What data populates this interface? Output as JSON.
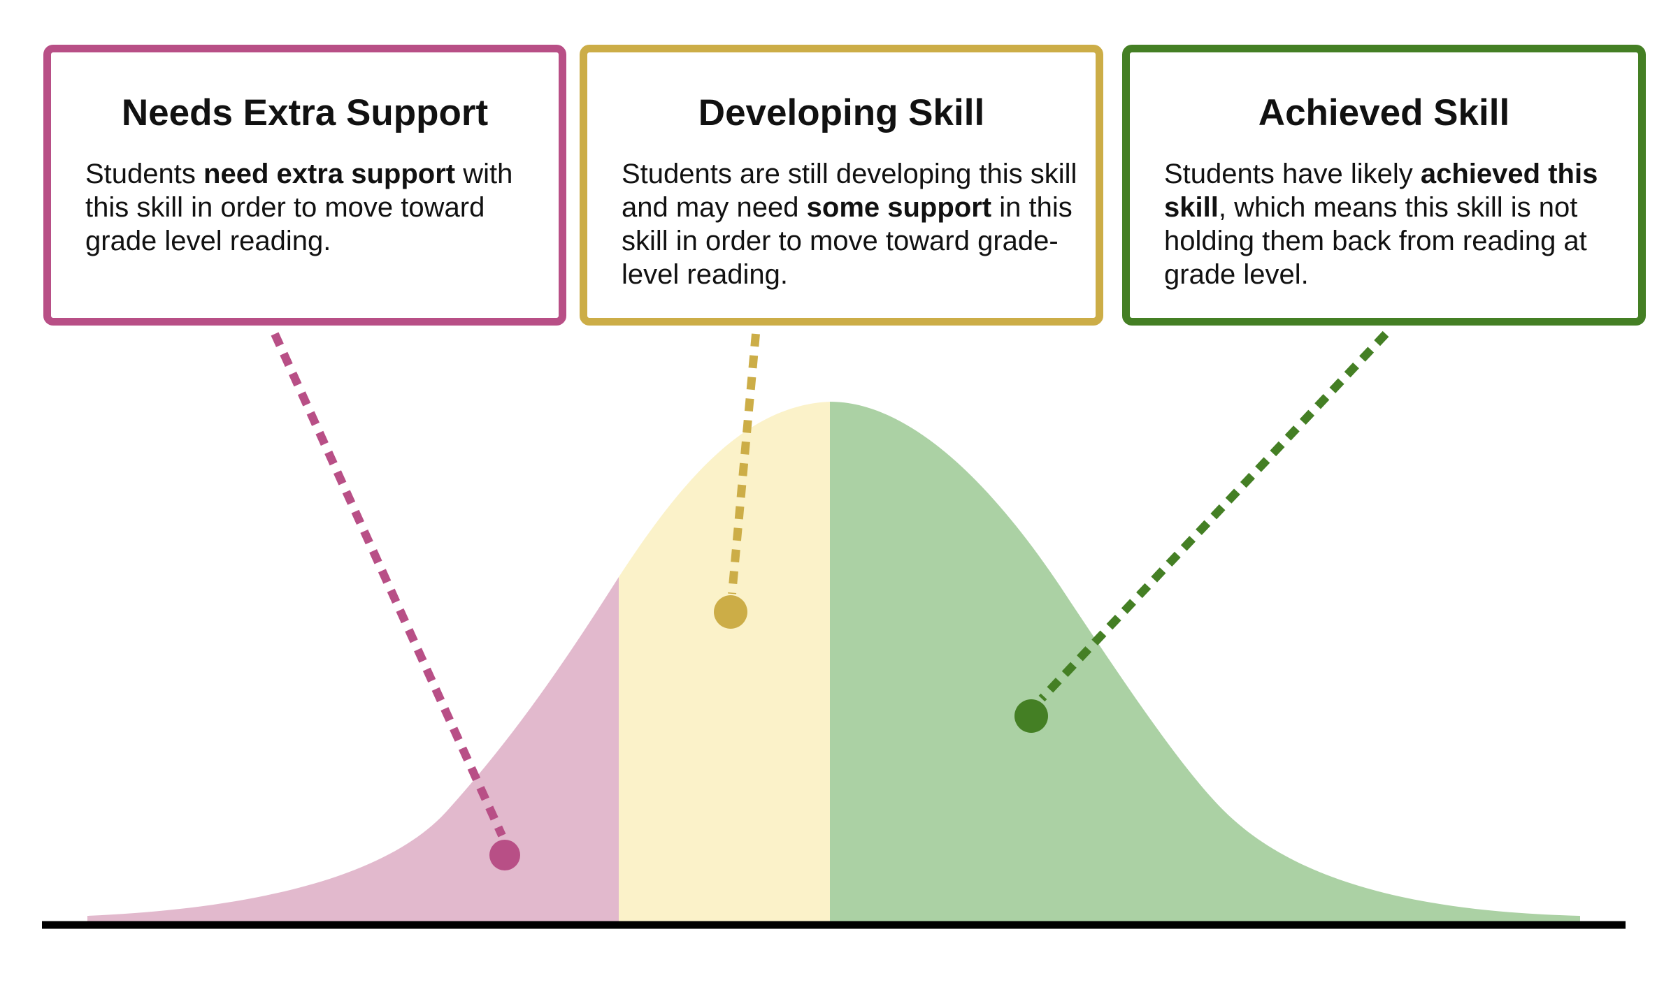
{
  "colors": {
    "needs_accent": "#b84f86",
    "needs_fill": "#e2b9cd",
    "developing_accent": "#ccad47",
    "developing_fill": "#fbf2c9",
    "achieved_accent": "#447f24",
    "achieved_fill": "#abd1a4",
    "baseline": "#000000"
  },
  "cards": [
    {
      "id": "needs",
      "title": "Needs Extra Support",
      "body": [
        {
          "text": "Students ",
          "bold": false
        },
        {
          "text": "need extra support",
          "bold": true
        },
        {
          "text": " with this skill in order to move toward grade level reading.",
          "bold": false
        }
      ]
    },
    {
      "id": "developing",
      "title": "Developing Skill",
      "body": [
        {
          "text": "Students are still developing this skill and may need ",
          "bold": false
        },
        {
          "text": "some support",
          "bold": true
        },
        {
          "text": " in this skill in order to move toward grade-level reading.",
          "bold": false
        }
      ]
    },
    {
      "id": "achieved",
      "title": "Achieved Skill",
      "body": [
        {
          "text": "Students have likely ",
          "bold": false
        },
        {
          "text": "achieved this skill",
          "bold": true
        },
        {
          "text": ", which means this skill is not holding them back from reading at grade level.",
          "bold": false
        }
      ]
    }
  ],
  "distribution": {
    "shape": "normal",
    "segments": [
      {
        "id": "needs",
        "range": "left tail up to cutoff 1"
      },
      {
        "id": "developing",
        "range": "cutoff 1 to the mean"
      },
      {
        "id": "achieved",
        "range": "the mean to right tail"
      }
    ]
  }
}
